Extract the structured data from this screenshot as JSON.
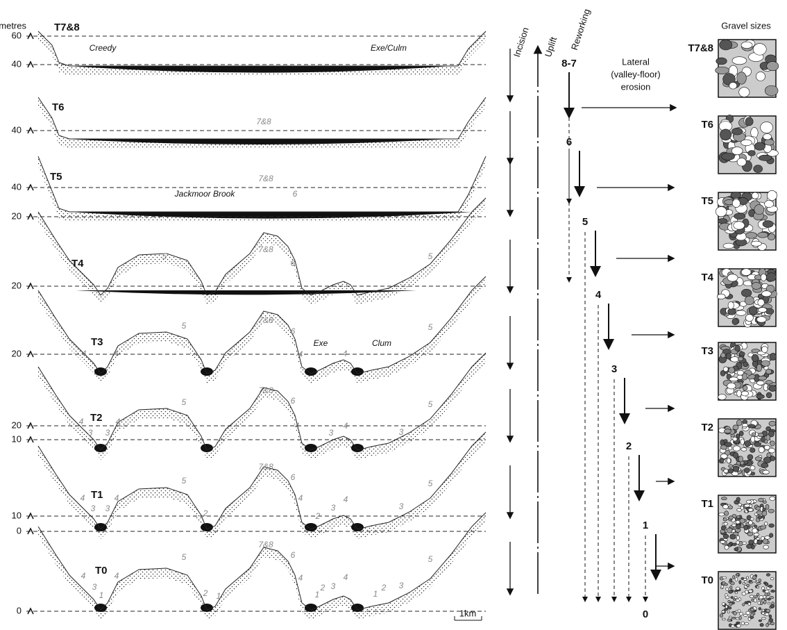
{
  "header": {
    "metres": "metres",
    "incision": "Incision",
    "uplift": "Uplift",
    "reworking": "Reworking",
    "gravel_sizes": "Gravel sizes",
    "lateral_erosion": [
      "Lateral",
      "(valley-floor)",
      "erosion"
    ]
  },
  "panels": [
    {
      "label": "T7&8",
      "levels": [
        60,
        40
      ],
      "notes": [
        "Creedy",
        "Exe/Culm"
      ]
    },
    {
      "label": "T6",
      "levels": [
        40
      ],
      "notes": [
        "7&8"
      ]
    },
    {
      "label": "T5",
      "levels": [
        40,
        20
      ],
      "notes": [
        "Jackmoor Brook",
        "7&8",
        "6"
      ]
    },
    {
      "label": "T4",
      "levels": [
        20
      ],
      "notes": [
        "5",
        "7&8",
        "6",
        "5"
      ]
    },
    {
      "label": "T3",
      "levels": [
        20
      ],
      "notes": [
        "4",
        "4",
        "5",
        "7&8",
        "6",
        "4",
        "Exe",
        "4",
        "Clum",
        "5"
      ]
    },
    {
      "label": "T2",
      "levels": [
        20,
        10
      ],
      "notes": [
        "4",
        "3",
        "3",
        "4",
        "5",
        "7&8",
        "6",
        "4",
        "3",
        "4",
        "3",
        "5"
      ]
    },
    {
      "label": "T1",
      "levels": [
        10,
        0
      ],
      "notes": [
        "4",
        "3",
        "3",
        "4",
        "5",
        "2",
        "7&8",
        "6",
        "4",
        "2",
        "3",
        "4",
        "3",
        "5"
      ]
    },
    {
      "label": "T0",
      "levels": [
        0
      ],
      "notes": [
        "4",
        "3",
        "1",
        "4",
        "5",
        "2",
        "1",
        "7&8",
        "6",
        "4",
        "1",
        "2",
        "3",
        "4",
        "1",
        "2",
        "3",
        "5"
      ]
    }
  ],
  "reworking_stages": [
    "8-7",
    "6",
    "5",
    "4",
    "3",
    "2",
    "1",
    "0"
  ],
  "gravel_panels": [
    "T7&8",
    "T6",
    "T5",
    "T4",
    "T3",
    "T2",
    "T1",
    "T0"
  ],
  "scale_bar": "1km"
}
